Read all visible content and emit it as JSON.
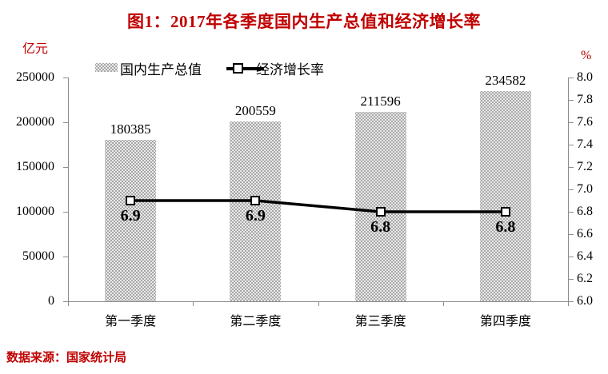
{
  "title": "图1：2017年各季度国内生产总值和经济增长率",
  "left_axis_unit": "亿元",
  "right_axis_unit": "%",
  "source": "数据来源：国家统计局",
  "legend": {
    "bar_label": "国内生产总值",
    "line_label": "经济增长率"
  },
  "colors": {
    "accent_red": "#c00000",
    "bar_fill": "#a8a8a8",
    "bar_dots": "#ffffff",
    "line": "#000000",
    "axis": "#8c8c8c",
    "text": "#000000"
  },
  "chart_data": {
    "type": [
      "bar",
      "line"
    ],
    "title": "图1：2017年各季度国内生产总值和经济增长率",
    "categories": [
      "第一季度",
      "第二季度",
      "第三季度",
      "第四季度"
    ],
    "series": [
      {
        "name": "国内生产总值",
        "type": "bar",
        "axis": "left",
        "unit": "亿元",
        "values": [
          180385,
          200559,
          211596,
          234582
        ]
      },
      {
        "name": "经济增长率",
        "type": "line",
        "axis": "right",
        "unit": "%",
        "values": [
          6.9,
          6.9,
          6.8,
          6.8
        ]
      }
    ],
    "left_axis": {
      "label": "亿元",
      "range": [
        0,
        250000
      ],
      "ticks": [
        0,
        50000,
        100000,
        150000,
        200000,
        250000
      ]
    },
    "right_axis": {
      "label": "%",
      "range": [
        6.0,
        8.0
      ],
      "ticks": [
        6.0,
        6.2,
        6.4,
        6.6,
        6.8,
        7.0,
        7.2,
        7.4,
        7.6,
        7.8,
        8.0
      ]
    },
    "grid": false,
    "legend_position": "top-left-inside",
    "source": "数据来源：国家统计局"
  }
}
